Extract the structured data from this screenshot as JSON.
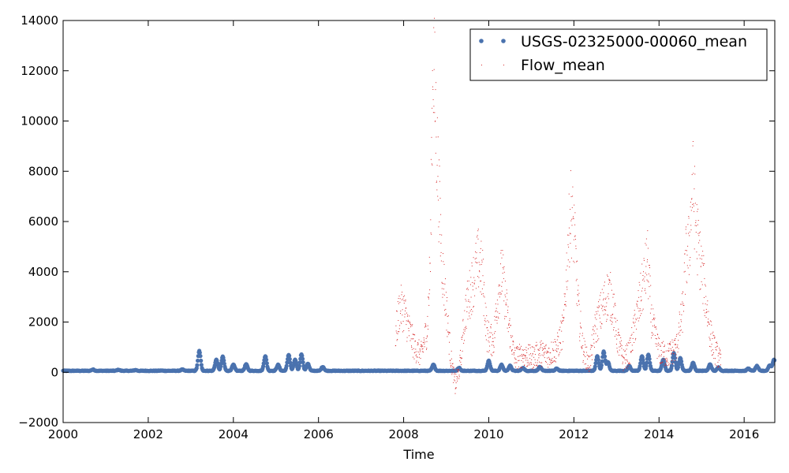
{
  "chart_data": {
    "type": "scatter",
    "title": "",
    "xlabel": "Time",
    "ylabel": "",
    "xlim": [
      2000.0,
      2016.72
    ],
    "ylim": [
      -2000,
      14000
    ],
    "x_ticks": [
      2000,
      2002,
      2004,
      2006,
      2008,
      2010,
      2012,
      2014,
      2016
    ],
    "x_tick_labels": [
      "2000",
      "2002",
      "2004",
      "2006",
      "2008",
      "2010",
      "2012",
      "2014",
      "2016"
    ],
    "y_ticks": [
      -2000,
      0,
      2000,
      4000,
      6000,
      8000,
      10000,
      12000,
      14000
    ],
    "y_tick_labels": [
      "−2000",
      "0",
      "2000",
      "4000",
      "6000",
      "8000",
      "10000",
      "12000",
      "14000"
    ],
    "grid": false,
    "legend": {
      "position": "top-right"
    },
    "series": [
      {
        "name": "USGS-02325000-00060_mean",
        "color": "#4a72ae",
        "marker": "dot",
        "baseline": 60,
        "peaks": [
          [
            2000.7,
            110
          ],
          [
            2001.3,
            100
          ],
          [
            2001.7,
            90
          ],
          [
            2002.3,
            70
          ],
          [
            2002.8,
            110
          ],
          [
            2003.2,
            850
          ],
          [
            2003.6,
            500
          ],
          [
            2003.75,
            620
          ],
          [
            2004.0,
            300
          ],
          [
            2004.3,
            320
          ],
          [
            2004.75,
            650
          ],
          [
            2005.05,
            300
          ],
          [
            2005.3,
            700
          ],
          [
            2005.45,
            500
          ],
          [
            2005.6,
            720
          ],
          [
            2005.75,
            350
          ],
          [
            2006.1,
            220
          ],
          [
            2008.7,
            300
          ],
          [
            2009.3,
            180
          ],
          [
            2010.0,
            460
          ],
          [
            2010.3,
            300
          ],
          [
            2010.5,
            260
          ],
          [
            2010.8,
            180
          ],
          [
            2011.2,
            220
          ],
          [
            2011.6,
            150
          ],
          [
            2012.55,
            650
          ],
          [
            2012.7,
            820
          ],
          [
            2012.8,
            400
          ],
          [
            2013.3,
            250
          ],
          [
            2013.6,
            650
          ],
          [
            2013.75,
            700
          ],
          [
            2014.1,
            500
          ],
          [
            2014.35,
            760
          ],
          [
            2014.5,
            560
          ],
          [
            2014.8,
            380
          ],
          [
            2015.2,
            320
          ],
          [
            2015.4,
            200
          ],
          [
            2016.1,
            150
          ],
          [
            2016.3,
            250
          ],
          [
            2016.6,
            280
          ],
          [
            2016.7,
            500
          ]
        ]
      },
      {
        "name": "Flow_mean",
        "color": "#d62728",
        "marker": "pixel",
        "start": 2007.8,
        "end": 2015.45,
        "envelope": [
          [
            2007.8,
            1500
          ],
          [
            2007.9,
            2600
          ],
          [
            2008.0,
            2500
          ],
          [
            2008.1,
            1800
          ],
          [
            2008.25,
            1000
          ],
          [
            2008.4,
            700
          ],
          [
            2008.55,
            1800
          ],
          [
            2008.62,
            4500
          ],
          [
            2008.68,
            12800
          ],
          [
            2008.75,
            10000
          ],
          [
            2008.82,
            7000
          ],
          [
            2008.9,
            4200
          ],
          [
            2009.0,
            2500
          ],
          [
            2009.1,
            600
          ],
          [
            2009.2,
            -500
          ],
          [
            2009.3,
            100
          ],
          [
            2009.45,
            2500
          ],
          [
            2009.6,
            3500
          ],
          [
            2009.75,
            4500
          ],
          [
            2009.85,
            3800
          ],
          [
            2009.95,
            1500
          ],
          [
            2010.1,
            1200
          ],
          [
            2010.2,
            3000
          ],
          [
            2010.3,
            4000
          ],
          [
            2010.45,
            2000
          ],
          [
            2010.6,
            600
          ],
          [
            2010.8,
            700
          ],
          [
            2011.0,
            600
          ],
          [
            2011.2,
            800
          ],
          [
            2011.4,
            700
          ],
          [
            2011.6,
            1000
          ],
          [
            2011.75,
            1800
          ],
          [
            2011.85,
            5000
          ],
          [
            2011.92,
            6500
          ],
          [
            2012.0,
            5500
          ],
          [
            2012.1,
            2500
          ],
          [
            2012.2,
            1000
          ],
          [
            2012.35,
            300
          ],
          [
            2012.5,
            1800
          ],
          [
            2012.65,
            2500
          ],
          [
            2012.8,
            3200
          ],
          [
            2012.9,
            2800
          ],
          [
            2013.0,
            1500
          ],
          [
            2013.15,
            500
          ],
          [
            2013.3,
            800
          ],
          [
            2013.5,
            2500
          ],
          [
            2013.62,
            3500
          ],
          [
            2013.72,
            4500
          ],
          [
            2013.82,
            2000
          ],
          [
            2014.0,
            800
          ],
          [
            2014.2,
            700
          ],
          [
            2014.4,
            1000
          ],
          [
            2014.55,
            2500
          ],
          [
            2014.62,
            4500
          ],
          [
            2014.7,
            5000
          ],
          [
            2014.78,
            7600
          ],
          [
            2014.88,
            5500
          ],
          [
            2015.0,
            4000
          ],
          [
            2015.1,
            2800
          ],
          [
            2015.2,
            1500
          ],
          [
            2015.3,
            900
          ],
          [
            2015.45,
            400
          ]
        ]
      }
    ]
  }
}
